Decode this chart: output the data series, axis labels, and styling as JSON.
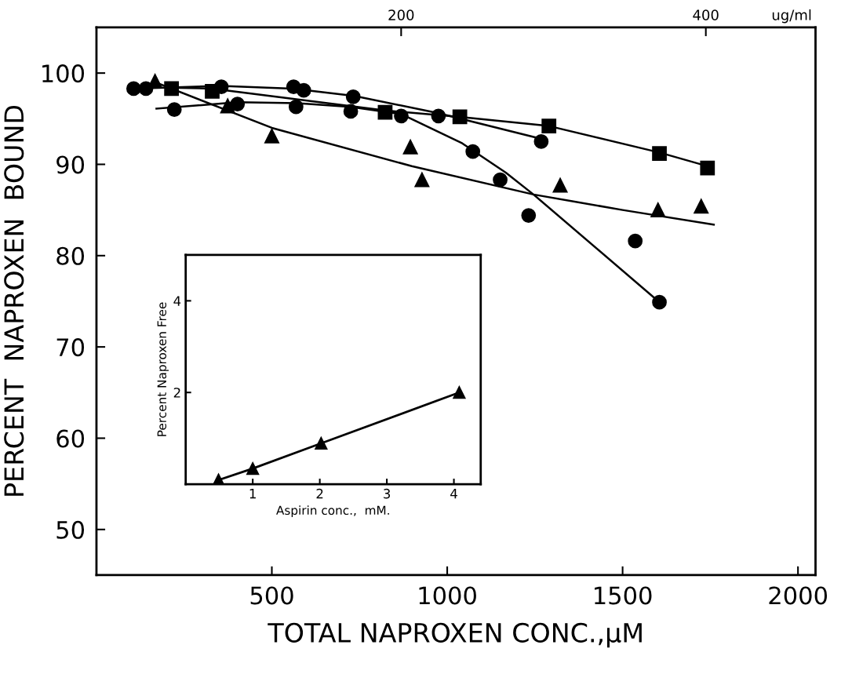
{
  "chart_data": [
    {
      "type": "scatter",
      "xlabel": "TOTAL NAPROXEN CONC.,μM",
      "ylabel": "PERCENT  NAPROXEN  BOUND",
      "x2label": "ug/ml",
      "xlim": [
        0,
        2050
      ],
      "xticks": [
        500,
        1000,
        1500,
        2000
      ],
      "ylim": [
        45,
        105
      ],
      "yticks": [
        50,
        60,
        70,
        80,
        90,
        100
      ],
      "x2lim": [
        0,
        472
      ],
      "x2ticks": [
        200,
        400
      ],
      "grid": false,
      "legend": false,
      "series": [
        {
          "marker": "circle",
          "color": "#000000",
          "x": [
            106,
            141,
            356,
            562,
            591,
            732,
            975,
            1268
          ],
          "values": [
            98.3,
            98.3,
            98.5,
            98.5,
            98.1,
            97.4,
            95.3,
            92.5
          ]
        },
        {
          "marker": "square",
          "color": "#000000",
          "x": [
            214,
            330,
            823,
            1036,
            1290,
            1605,
            1742
          ],
          "values": [
            98.3,
            98.0,
            95.7,
            95.2,
            94.2,
            91.2,
            89.6
          ]
        },
        {
          "marker": "triangle",
          "color": "#000000",
          "x": [
            167,
            374,
            500,
            895,
            928,
            1322,
            1601,
            1724
          ],
          "values": [
            99.1,
            96.4,
            93.1,
            91.9,
            88.3,
            87.7,
            85.0,
            85.4
          ]
        },
        {
          "marker": "circle",
          "color": "#000000",
          "x": [
            222,
            402,
            569,
            725,
            869,
            1073,
            1151,
            1232,
            1536,
            1605
          ],
          "values": [
            96.0,
            96.6,
            96.3,
            95.8,
            95.3,
            91.4,
            88.3,
            84.4,
            81.6,
            74.9
          ]
        },
        {
          "type": "line",
          "color": "#000000",
          "x": [
            106,
            356,
            560,
            735,
            975,
            1268
          ],
          "values": [
            98.3,
            98.6,
            98.3,
            97.5,
            95.6,
            92.8
          ]
        },
        {
          "type": "line",
          "color": "#000000",
          "x": [
            214,
            330,
            823,
            1036,
            1290,
            1605,
            1742
          ],
          "values": [
            98.4,
            98.3,
            95.9,
            95.2,
            94.2,
            91.3,
            89.8
          ]
        },
        {
          "type": "line",
          "color": "#000000",
          "x": [
            167,
            500,
            899,
            1246,
            1500,
            1760
          ],
          "values": [
            99.0,
            94.0,
            89.8,
            86.7,
            85.0,
            83.4
          ]
        },
        {
          "type": "line",
          "color": "#000000",
          "x": [
            171,
            402,
            573,
            725,
            869,
            1043,
            1167,
            1246,
            1605
          ],
          "values": [
            96.1,
            96.8,
            96.7,
            96.3,
            95.5,
            92.3,
            89.1,
            86.7,
            74.9
          ]
        }
      ]
    },
    {
      "type": "line",
      "xlabel": "Aspirin conc.,  mM.",
      "ylabel": "Percent Naproxen Free",
      "xlim": [
        0,
        4.4
      ],
      "xticks": [
        1,
        2,
        3,
        4
      ],
      "ylim": [
        0,
        5
      ],
      "yticks": [
        2,
        4
      ],
      "grid": false,
      "legend": false,
      "series": [
        {
          "marker": "triangle",
          "color": "#000000",
          "x": [
            0.49,
            1.0,
            2.02,
            4.08
          ],
          "values": [
            0.09,
            0.34,
            0.89,
            2.0
          ]
        }
      ]
    }
  ]
}
